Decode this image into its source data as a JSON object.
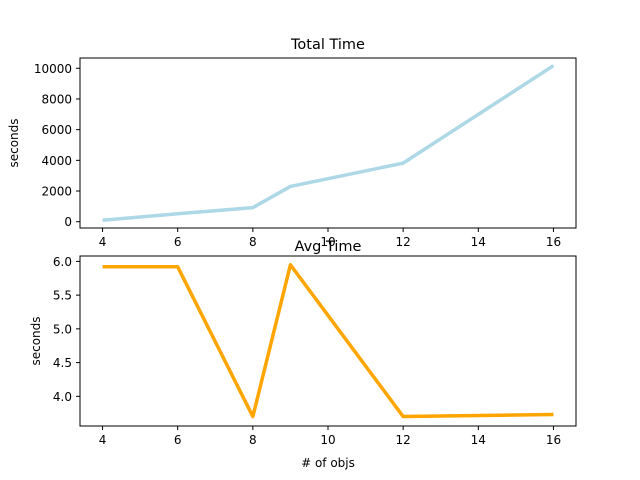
{
  "chart_data": [
    {
      "type": "line",
      "title": "Total Time",
      "xlabel": "# of objs",
      "ylabel": "seconds",
      "xlim": [
        3.4,
        16.6
      ],
      "ylim": [
        -410,
        10670
      ],
      "xticks": [
        4,
        6,
        8,
        10,
        12,
        14,
        16
      ],
      "yticks": [
        0,
        2000,
        4000,
        6000,
        8000,
        10000
      ],
      "ytick_labels": [
        "0",
        "2000",
        "4000",
        "6000",
        "8000",
        "10000"
      ],
      "grid": false,
      "series": [
        {
          "color": "#add8e6",
          "x": [
            4,
            6,
            8,
            9,
            12,
            16
          ],
          "y": [
            95,
            520,
            920,
            2300,
            3820,
            10170
          ]
        }
      ]
    },
    {
      "type": "line",
      "title": "Avg Time",
      "xlabel": "# of objs",
      "ylabel": "seconds",
      "xlim": [
        3.4,
        16.6
      ],
      "ylim": [
        3.56,
        6.08
      ],
      "xticks": [
        4,
        6,
        8,
        10,
        12,
        14,
        16
      ],
      "yticks": [
        4.0,
        4.5,
        5.0,
        5.5,
        6.0
      ],
      "ytick_labels": [
        "4.0",
        "4.5",
        "5.0",
        "5.5",
        "6.0"
      ],
      "grid": false,
      "series": [
        {
          "color": "#ffa500",
          "x": [
            4,
            6,
            8,
            9,
            12,
            16
          ],
          "y": [
            5.92,
            5.92,
            3.7,
            5.95,
            3.7,
            3.73
          ]
        }
      ]
    }
  ]
}
